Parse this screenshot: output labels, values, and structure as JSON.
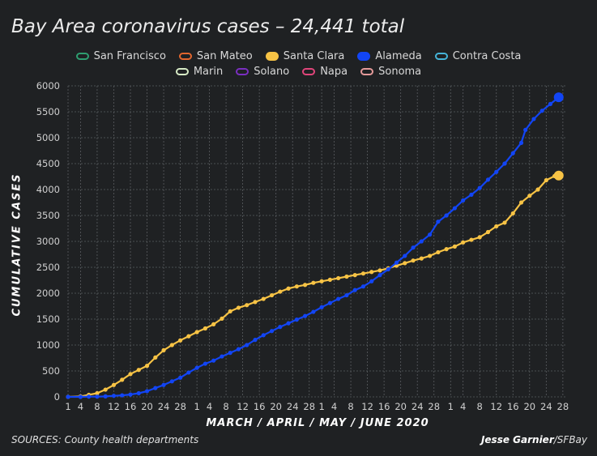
{
  "header": {
    "title": "Bay Area coronavirus cases – 24,441 total"
  },
  "legend": {
    "row1": [
      {
        "name": "San Francisco",
        "color": "#2e9e70",
        "filled": false
      },
      {
        "name": "San Mateo",
        "color": "#e2662e",
        "filled": false
      },
      {
        "name": "Santa Clara",
        "color": "#f7c345",
        "filled": true
      },
      {
        "name": "Alameda",
        "color": "#1245f5",
        "filled": true
      },
      {
        "name": "Contra Costa",
        "color": "#45b4d8",
        "filled": false
      }
    ],
    "row2": [
      {
        "name": "Marin",
        "color": "#d7ebc5",
        "filled": false
      },
      {
        "name": "Solano",
        "color": "#7a2fc0",
        "filled": false
      },
      {
        "name": "Napa",
        "color": "#e0457a",
        "filled": false
      },
      {
        "name": "Sonoma",
        "color": "#e59a9a",
        "filled": false
      }
    ]
  },
  "footer": {
    "sources": "SOURCES: County health departments",
    "author": "Jesse Garnier",
    "outlet": "/SFBay"
  },
  "chart_data": {
    "type": "line",
    "xlabel": "MARCH / APRIL / MAY / JUNE 2020",
    "ylabel": "CUMULATIVE CASES",
    "ylim": [
      0,
      6000
    ],
    "yticks": [
      0,
      500,
      1000,
      1500,
      2000,
      2500,
      3000,
      3500,
      4000,
      4500,
      5000,
      5500,
      6000
    ],
    "x_range_days": [
      1,
      121
    ],
    "xticks": [
      {
        "day": 1,
        "label": "1"
      },
      {
        "day": 4,
        "label": "4"
      },
      {
        "day": 8,
        "label": "8"
      },
      {
        "day": 12,
        "label": "12"
      },
      {
        "day": 16,
        "label": "16"
      },
      {
        "day": 20,
        "label": "20"
      },
      {
        "day": 24,
        "label": "24"
      },
      {
        "day": 28,
        "label": "28"
      },
      {
        "day": 32,
        "label": "1"
      },
      {
        "day": 35,
        "label": "4"
      },
      {
        "day": 39,
        "label": "8"
      },
      {
        "day": 43,
        "label": "12"
      },
      {
        "day": 47,
        "label": "16"
      },
      {
        "day": 51,
        "label": "20"
      },
      {
        "day": 55,
        "label": "24"
      },
      {
        "day": 59,
        "label": "28"
      },
      {
        "day": 62,
        "label": "1"
      },
      {
        "day": 65,
        "label": "4"
      },
      {
        "day": 69,
        "label": "8"
      },
      {
        "day": 73,
        "label": "12"
      },
      {
        "day": 77,
        "label": "16"
      },
      {
        "day": 81,
        "label": "20"
      },
      {
        "day": 85,
        "label": "24"
      },
      {
        "day": 89,
        "label": "28"
      },
      {
        "day": 93,
        "label": "1"
      },
      {
        "day": 96,
        "label": "4"
      },
      {
        "day": 100,
        "label": "8"
      },
      {
        "day": 104,
        "label": "12"
      },
      {
        "day": 108,
        "label": "16"
      },
      {
        "day": 112,
        "label": "20"
      },
      {
        "day": 116,
        "label": "24"
      },
      {
        "day": 120,
        "label": "28"
      }
    ],
    "grid": true,
    "legend_position": "top",
    "series": [
      {
        "name": "Santa Clara",
        "color": "#f7c345",
        "points": [
          [
            1,
            0
          ],
          [
            4,
            10
          ],
          [
            6,
            40
          ],
          [
            8,
            70
          ],
          [
            10,
            140
          ],
          [
            12,
            230
          ],
          [
            14,
            330
          ],
          [
            16,
            440
          ],
          [
            18,
            520
          ],
          [
            20,
            600
          ],
          [
            22,
            760
          ],
          [
            24,
            900
          ],
          [
            26,
            1000
          ],
          [
            28,
            1090
          ],
          [
            30,
            1170
          ],
          [
            32,
            1250
          ],
          [
            34,
            1320
          ],
          [
            36,
            1400
          ],
          [
            38,
            1510
          ],
          [
            40,
            1650
          ],
          [
            42,
            1720
          ],
          [
            44,
            1770
          ],
          [
            46,
            1830
          ],
          [
            48,
            1890
          ],
          [
            50,
            1960
          ],
          [
            52,
            2030
          ],
          [
            54,
            2090
          ],
          [
            56,
            2130
          ],
          [
            58,
            2160
          ],
          [
            60,
            2200
          ],
          [
            62,
            2230
          ],
          [
            64,
            2260
          ],
          [
            66,
            2290
          ],
          [
            68,
            2320
          ],
          [
            70,
            2350
          ],
          [
            72,
            2380
          ],
          [
            74,
            2410
          ],
          [
            76,
            2440
          ],
          [
            78,
            2480
          ],
          [
            80,
            2530
          ],
          [
            82,
            2580
          ],
          [
            84,
            2630
          ],
          [
            86,
            2670
          ],
          [
            88,
            2720
          ],
          [
            90,
            2790
          ],
          [
            92,
            2850
          ],
          [
            94,
            2900
          ],
          [
            96,
            2980
          ],
          [
            98,
            3030
          ],
          [
            100,
            3080
          ],
          [
            102,
            3180
          ],
          [
            104,
            3290
          ],
          [
            106,
            3360
          ],
          [
            108,
            3540
          ],
          [
            110,
            3750
          ],
          [
            112,
            3880
          ],
          [
            114,
            4000
          ],
          [
            116,
            4180
          ],
          [
            118,
            4260
          ],
          [
            119,
            4270
          ]
        ]
      },
      {
        "name": "Alameda",
        "color": "#1245f5",
        "points": [
          [
            1,
            0
          ],
          [
            4,
            0
          ],
          [
            6,
            5
          ],
          [
            8,
            5
          ],
          [
            10,
            10
          ],
          [
            12,
            20
          ],
          [
            14,
            30
          ],
          [
            16,
            45
          ],
          [
            18,
            70
          ],
          [
            20,
            110
          ],
          [
            22,
            170
          ],
          [
            24,
            230
          ],
          [
            26,
            300
          ],
          [
            28,
            370
          ],
          [
            30,
            470
          ],
          [
            32,
            560
          ],
          [
            34,
            640
          ],
          [
            36,
            700
          ],
          [
            38,
            780
          ],
          [
            40,
            850
          ],
          [
            42,
            920
          ],
          [
            44,
            1000
          ],
          [
            46,
            1100
          ],
          [
            48,
            1190
          ],
          [
            50,
            1270
          ],
          [
            52,
            1350
          ],
          [
            54,
            1420
          ],
          [
            56,
            1490
          ],
          [
            58,
            1560
          ],
          [
            60,
            1640
          ],
          [
            62,
            1730
          ],
          [
            64,
            1810
          ],
          [
            66,
            1890
          ],
          [
            68,
            1960
          ],
          [
            70,
            2060
          ],
          [
            72,
            2130
          ],
          [
            74,
            2230
          ],
          [
            76,
            2350
          ],
          [
            78,
            2460
          ],
          [
            80,
            2590
          ],
          [
            82,
            2720
          ],
          [
            84,
            2880
          ],
          [
            86,
            3000
          ],
          [
            88,
            3130
          ],
          [
            90,
            3380
          ],
          [
            92,
            3500
          ],
          [
            94,
            3640
          ],
          [
            96,
            3790
          ],
          [
            98,
            3900
          ],
          [
            100,
            4030
          ],
          [
            102,
            4190
          ],
          [
            104,
            4340
          ],
          [
            106,
            4500
          ],
          [
            108,
            4700
          ],
          [
            110,
            4900
          ],
          [
            111,
            5150
          ],
          [
            113,
            5360
          ],
          [
            115,
            5520
          ],
          [
            117,
            5650
          ],
          [
            119,
            5780
          ]
        ]
      }
    ]
  }
}
